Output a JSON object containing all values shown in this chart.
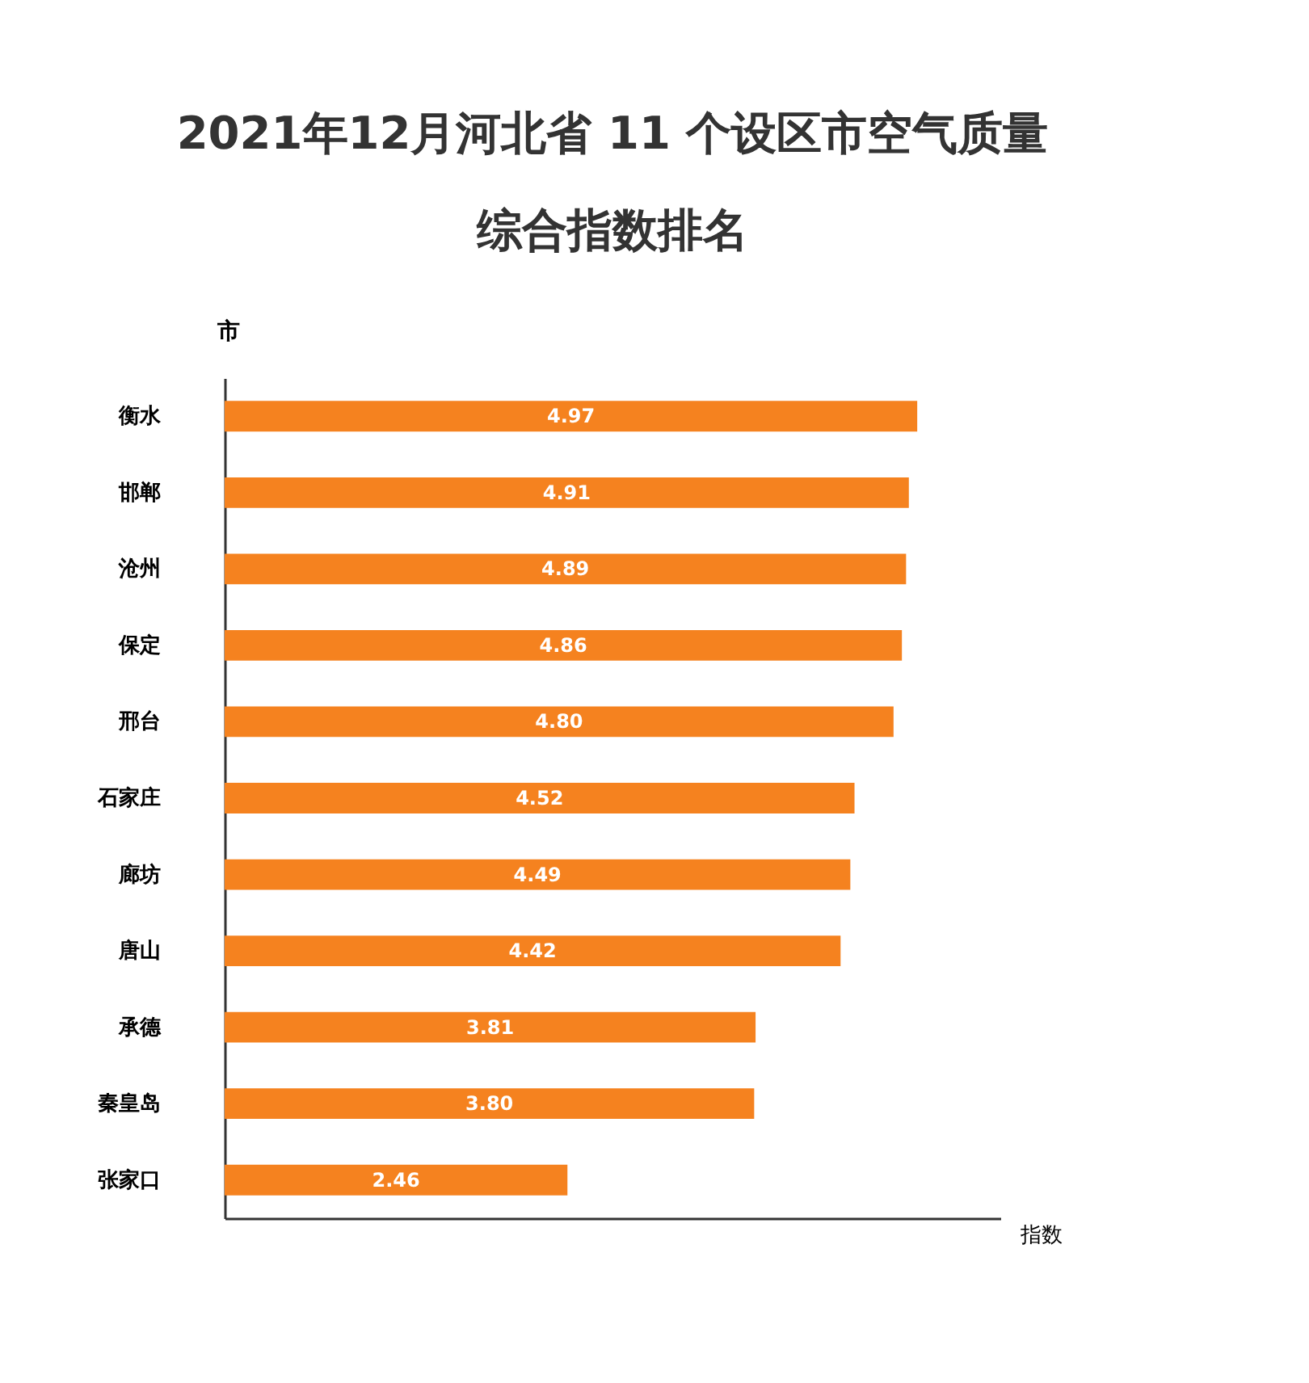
{
  "chart_data": {
    "type": "bar",
    "orientation": "horizontal",
    "title": [
      "2021年12月河北省 11 个设区市空气质量",
      "综合指数排名"
    ],
    "xlabel": "指数",
    "ylabel": "市",
    "categories": [
      "衡水",
      "邯郸",
      "沧州",
      "保定",
      "邢台",
      "石家庄",
      "廊坊",
      "唐山",
      "承德",
      "秦皇岛",
      "张家口"
    ],
    "values": [
      4.97,
      4.91,
      4.89,
      4.86,
      4.8,
      4.52,
      4.49,
      4.42,
      3.81,
      3.8,
      2.46
    ],
    "value_labels": [
      "4.97",
      "4.91",
      "4.89",
      "4.86",
      "4.80",
      "4.52",
      "4.49",
      "4.42",
      "3.81",
      "3.80",
      "2.46"
    ],
    "color": "#f5821f",
    "tick_labels": "y",
    "grid": false
  }
}
